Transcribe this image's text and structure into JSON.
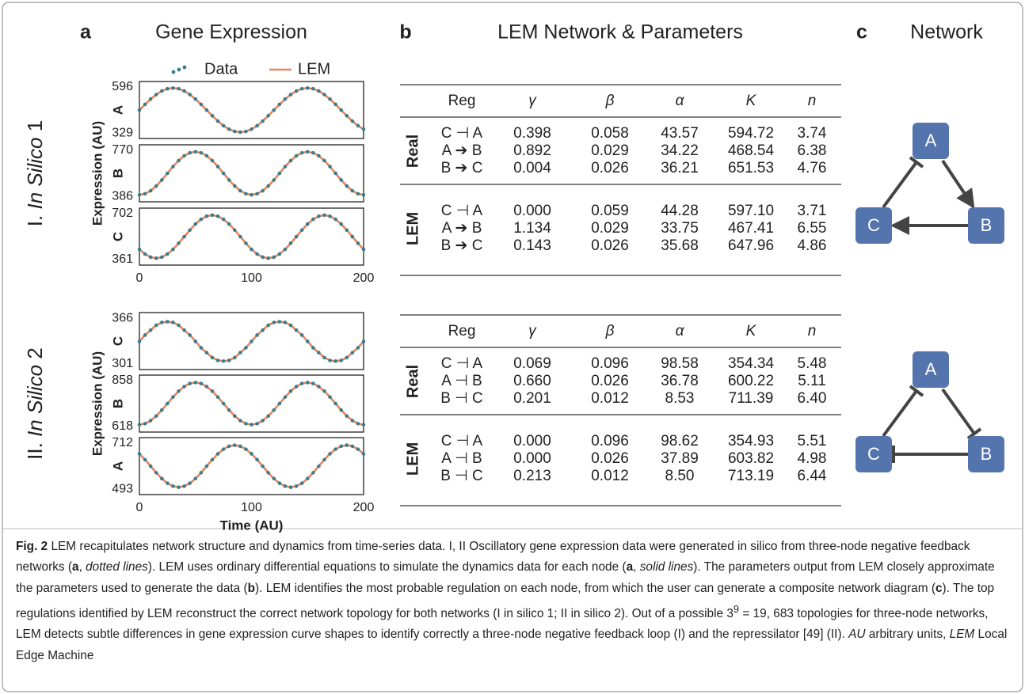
{
  "figure": {
    "panel_a": {
      "letter": "a",
      "title": "Gene Expression"
    },
    "panel_b": {
      "letter": "b",
      "title": "LEM Network & Parameters"
    },
    "panel_c": {
      "letter": "c",
      "title": "Network"
    },
    "rows": [
      {
        "prefix": "I.",
        "italic": "In Silico",
        "suffix": "1",
        "y_title": "Expression (AU)"
      },
      {
        "prefix": "II.",
        "italic": "In Silico",
        "suffix": "2",
        "y_title": "Expression (AU)"
      }
    ]
  },
  "chart_data": [
    {
      "type": "line",
      "y_label": "A",
      "xlim": [
        0,
        200
      ],
      "ylim": [
        297,
        628
      ],
      "yticks": [
        329,
        596
      ],
      "x": [
        0,
        5,
        10,
        15,
        20,
        25,
        30,
        35,
        40,
        45,
        50,
        55,
        60,
        65,
        70,
        75,
        80,
        85,
        90,
        95,
        100,
        105,
        110,
        115,
        120,
        125,
        130,
        135,
        140,
        145,
        150,
        155,
        160,
        165,
        170,
        175,
        180,
        185,
        190,
        195,
        200
      ],
      "series": [
        {
          "name": "Data",
          "style": "dotted",
          "color": "#3b7d8e",
          "values": [
            462,
            495,
            526,
            552,
            573,
            586,
            590,
            586,
            573,
            552,
            526,
            495,
            462,
            429,
            398,
            371,
            351,
            338,
            334,
            338,
            351,
            371,
            398,
            429,
            462,
            495,
            526,
            552,
            573,
            586,
            590,
            586,
            573,
            552,
            526,
            495,
            462,
            429,
            398,
            371,
            351
          ]
        },
        {
          "name": "LEM",
          "style": "solid",
          "color": "#e8855a",
          "values": [
            462,
            495,
            526,
            552,
            573,
            586,
            590,
            586,
            573,
            552,
            526,
            495,
            462,
            429,
            398,
            371,
            351,
            338,
            334,
            338,
            351,
            371,
            398,
            429,
            462,
            495,
            526,
            552,
            573,
            586,
            590,
            586,
            573,
            552,
            526,
            495,
            462,
            429,
            398,
            371,
            351
          ]
        }
      ]
    },
    {
      "type": "line",
      "y_label": "B",
      "xlim": [
        0,
        200
      ],
      "ylim": [
        340,
        816
      ],
      "yticks": [
        386,
        770
      ],
      "x": [
        0,
        5,
        10,
        15,
        20,
        25,
        30,
        35,
        40,
        45,
        50,
        55,
        60,
        65,
        70,
        75,
        80,
        85,
        90,
        95,
        100,
        105,
        110,
        115,
        120,
        125,
        130,
        135,
        140,
        145,
        150,
        155,
        160,
        165,
        170,
        175,
        180,
        185,
        190,
        195,
        200
      ],
      "series": [
        {
          "style": "dotted",
          "color": "#3b7d8e",
          "values": [
            398,
            407,
            432,
            472,
            522,
            578,
            634,
            684,
            724,
            749,
            758,
            749,
            724,
            684,
            634,
            578,
            522,
            472,
            432,
            407,
            398,
            407,
            432,
            472,
            522,
            578,
            634,
            684,
            724,
            749,
            758,
            749,
            724,
            684,
            634,
            578,
            522,
            472,
            432,
            407,
            398
          ]
        },
        {
          "style": "solid",
          "color": "#e8855a",
          "values": [
            398,
            407,
            432,
            472,
            522,
            578,
            634,
            684,
            724,
            749,
            758,
            749,
            724,
            684,
            634,
            578,
            522,
            472,
            432,
            407,
            398,
            407,
            432,
            472,
            522,
            578,
            634,
            684,
            724,
            749,
            758,
            749,
            724,
            684,
            634,
            578,
            522,
            472,
            432,
            407,
            398
          ]
        }
      ]
    },
    {
      "type": "line",
      "y_label": "C",
      "xlim": [
        0,
        200
      ],
      "ylim": [
        320,
        743
      ],
      "yticks": [
        361,
        702
      ],
      "xticks": [
        0,
        100,
        200
      ],
      "x": [
        0,
        5,
        10,
        15,
        20,
        25,
        30,
        35,
        40,
        45,
        50,
        55,
        60,
        65,
        70,
        75,
        80,
        85,
        90,
        95,
        100,
        105,
        110,
        115,
        120,
        125,
        130,
        135,
        140,
        145,
        150,
        155,
        160,
        165,
        170,
        175,
        180,
        185,
        190,
        195,
        200
      ],
      "series": [
        {
          "style": "dotted",
          "color": "#3b7d8e",
          "values": [
            437,
            402,
            379,
            371,
            379,
            402,
            437,
            482,
            531,
            580,
            625,
            660,
            683,
            691,
            683,
            660,
            625,
            580,
            531,
            482,
            437,
            402,
            379,
            371,
            379,
            402,
            437,
            482,
            531,
            580,
            625,
            660,
            683,
            691,
            683,
            660,
            625,
            580,
            531,
            482,
            437
          ]
        },
        {
          "style": "solid",
          "color": "#e8855a",
          "values": [
            437,
            402,
            379,
            371,
            379,
            402,
            437,
            482,
            531,
            580,
            625,
            660,
            683,
            691,
            683,
            660,
            625,
            580,
            531,
            482,
            437,
            402,
            379,
            371,
            379,
            402,
            437,
            482,
            531,
            580,
            625,
            660,
            683,
            691,
            683,
            660,
            625,
            580,
            531,
            482,
            437
          ]
        }
      ]
    },
    {
      "type": "line",
      "y_label": "C",
      "xlim": [
        0,
        200
      ],
      "ylim": [
        293,
        374
      ],
      "yticks": [
        301,
        366
      ],
      "x": [
        0,
        5,
        10,
        15,
        20,
        25,
        30,
        35,
        40,
        45,
        50,
        55,
        60,
        65,
        70,
        75,
        80,
        85,
        90,
        95,
        100,
        105,
        110,
        115,
        120,
        125,
        130,
        135,
        140,
        145,
        150,
        155,
        160,
        165,
        170,
        175,
        180,
        185,
        190,
        195,
        200
      ],
      "series": [
        {
          "style": "dotted",
          "color": "#3b7d8e",
          "values": [
            333,
            342,
            349,
            356,
            360,
            361,
            360,
            356,
            349,
            342,
            333,
            324,
            317,
            310,
            306,
            305,
            306,
            310,
            317,
            324,
            333,
            342,
            349,
            356,
            360,
            361,
            360,
            356,
            349,
            342,
            333,
            324,
            317,
            310,
            306,
            305,
            306,
            310,
            317,
            324,
            333
          ]
        },
        {
          "style": "solid",
          "color": "#e8855a",
          "values": [
            333,
            342,
            349,
            356,
            360,
            361,
            360,
            356,
            349,
            342,
            333,
            324,
            317,
            310,
            306,
            305,
            306,
            310,
            317,
            324,
            333,
            342,
            349,
            356,
            360,
            361,
            360,
            356,
            349,
            342,
            333,
            324,
            317,
            310,
            306,
            305,
            306,
            310,
            317,
            324,
            333
          ]
        }
      ]
    },
    {
      "type": "line",
      "y_label": "B",
      "xlim": [
        0,
        200
      ],
      "ylim": [
        589,
        887
      ],
      "yticks": [
        618,
        858
      ],
      "x": [
        0,
        5,
        10,
        15,
        20,
        25,
        30,
        35,
        40,
        45,
        50,
        55,
        60,
        65,
        70,
        75,
        80,
        85,
        90,
        95,
        100,
        105,
        110,
        115,
        120,
        125,
        130,
        135,
        140,
        145,
        150,
        155,
        160,
        165,
        170,
        175,
        180,
        185,
        190,
        195,
        200
      ],
      "series": [
        {
          "style": "dotted",
          "color": "#3b7d8e",
          "values": [
            628,
            633,
            649,
            673,
            704,
            738,
            772,
            803,
            827,
            843,
            848,
            843,
            827,
            803,
            772,
            738,
            704,
            673,
            649,
            633,
            628,
            633,
            649,
            673,
            704,
            738,
            772,
            803,
            827,
            843,
            848,
            843,
            827,
            803,
            772,
            738,
            704,
            673,
            649,
            633,
            628
          ]
        },
        {
          "style": "solid",
          "color": "#e8855a",
          "values": [
            628,
            633,
            649,
            673,
            704,
            738,
            772,
            803,
            827,
            843,
            848,
            843,
            827,
            803,
            772,
            738,
            704,
            673,
            649,
            633,
            628,
            633,
            649,
            673,
            704,
            738,
            772,
            803,
            827,
            843,
            848,
            843,
            827,
            803,
            772,
            738,
            704,
            673,
            649,
            633,
            628
          ]
        }
      ]
    },
    {
      "type": "line",
      "y_label": "A",
      "xlim": [
        0,
        200
      ],
      "ylim": [
        467,
        738
      ],
      "yticks": [
        493,
        712
      ],
      "xticks": [
        0,
        100,
        200
      ],
      "x_label": "Time (AU)",
      "x": [
        0,
        5,
        10,
        15,
        20,
        25,
        30,
        35,
        40,
        45,
        50,
        55,
        60,
        65,
        70,
        75,
        80,
        85,
        90,
        95,
        100,
        105,
        110,
        115,
        120,
        125,
        130,
        135,
        140,
        145,
        150,
        155,
        160,
        165,
        170,
        175,
        180,
        185,
        190,
        195,
        200
      ],
      "series": [
        {
          "style": "dotted",
          "color": "#3b7d8e",
          "values": [
            661,
            633,
            602,
            571,
            543,
            521,
            507,
            502,
            507,
            521,
            543,
            571,
            602,
            633,
            661,
            683,
            697,
            702,
            697,
            683,
            661,
            633,
            602,
            571,
            543,
            521,
            507,
            502,
            507,
            521,
            543,
            571,
            602,
            633,
            661,
            683,
            697,
            702,
            697,
            683,
            661
          ]
        },
        {
          "style": "solid",
          "color": "#e8855a",
          "values": [
            661,
            633,
            602,
            571,
            543,
            521,
            507,
            502,
            507,
            521,
            543,
            571,
            602,
            633,
            661,
            683,
            697,
            702,
            697,
            683,
            661,
            633,
            602,
            571,
            543,
            521,
            507,
            502,
            507,
            521,
            543,
            571,
            602,
            633,
            661,
            683,
            697,
            702,
            697,
            683,
            661
          ]
        }
      ]
    }
  ],
  "tables": [
    {
      "header": [
        "Reg",
        "γ",
        "β",
        "α",
        "K",
        "n"
      ],
      "groups": [
        {
          "name": "Real",
          "rows": [
            [
              "C ⊣ A",
              "0.398",
              "0.058",
              "43.57",
              "594.72",
              "3.74"
            ],
            [
              "A ➔ B",
              "0.892",
              "0.029",
              "34.22",
              "468.54",
              "6.38"
            ],
            [
              "B ➔ C",
              "0.004",
              "0.026",
              "36.21",
              "651.53",
              "4.76"
            ]
          ]
        },
        {
          "name": "LEM",
          "rows": [
            [
              "C ⊣ A",
              "0.000",
              "0.059",
              "44.28",
              "597.10",
              "3.71"
            ],
            [
              "A ➔ B",
              "1.134",
              "0.029",
              "33.75",
              "467.41",
              "6.55"
            ],
            [
              "B ➔ C",
              "0.143",
              "0.026",
              "35.68",
              "647.96",
              "4.86"
            ]
          ]
        }
      ]
    },
    {
      "header": [
        "Reg",
        "γ",
        "β",
        "α",
        "K",
        "n"
      ],
      "groups": [
        {
          "name": "Real",
          "rows": [
            [
              "C ⊣ A",
              "0.069",
              "0.096",
              "98.58",
              "354.34",
              "5.48"
            ],
            [
              "A ⊣ B",
              "0.660",
              "0.026",
              "36.78",
              "600.22",
              "5.11"
            ],
            [
              "B ⊣ C",
              "0.201",
              "0.012",
              "8.53",
              "711.39",
              "6.40"
            ]
          ]
        },
        {
          "name": "LEM",
          "rows": [
            [
              "C ⊣ A",
              "0.000",
              "0.096",
              "98.62",
              "354.93",
              "5.51"
            ],
            [
              "A ⊣ B",
              "0.000",
              "0.026",
              "37.89",
              "603.82",
              "4.98"
            ],
            [
              "B ⊣ C",
              "0.213",
              "0.012",
              "8.50",
              "713.19",
              "6.44"
            ]
          ]
        }
      ]
    }
  ],
  "networks": [
    {
      "nodes": [
        "A",
        "B",
        "C"
      ]
    },
    {
      "nodes": [
        "A",
        "B",
        "C"
      ]
    }
  ],
  "caption": [
    "Fig. 2",
    " LEM recapitulates network structure and dynamics from time-series data. I, II Oscillatory gene expression data were generated in silico from three-node negative feedback networks (",
    "a",
    ", ",
    "dotted lines",
    "). LEM uses ordinary differential equations to simulate the dynamics data for each node (",
    "a",
    ", ",
    "solid lines",
    "). The parameters output from LEM closely approximate the parameters used to generate the data (",
    "b",
    "). LEM identifies the most probable regulation on each node, from which the user can generate a composite network diagram (",
    "c",
    "). The top regulations identified by LEM reconstruct the correct network topology for both networks (I in silico 1; II in silico 2). Out of a possible 3",
    "9",
    " = 19, 683 topologies for three-node networks, LEM detects subtle differences in gene expression curve shapes to identify correctly a three-node negative feedback loop (I) and the repressilator [49] (II). ",
    "AU",
    " arbitrary units, ",
    "LEM",
    " Local Edge Machine"
  ]
}
